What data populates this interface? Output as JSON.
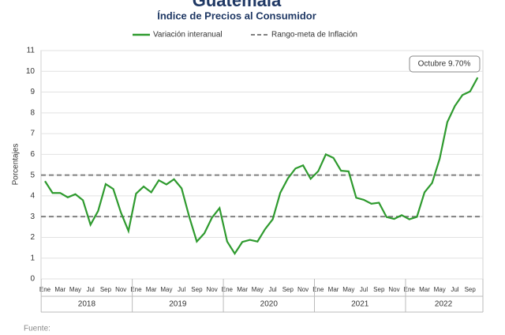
{
  "chart_data": {
    "type": "line",
    "title": "Guatemala",
    "subtitle": "Índice de Precios al Consumidor",
    "y_label": "Porcentajes",
    "categories": [
      "Ene",
      null,
      "Mar",
      null,
      "May",
      null,
      "Jul",
      null,
      "Sep",
      null,
      "Nov",
      null,
      "Ene",
      null,
      "Mar",
      null,
      "May",
      null,
      "Jul",
      null,
      "Sep",
      null,
      "Nov",
      null,
      "Ene",
      null,
      "Mar",
      null,
      "May",
      null,
      "Jul",
      null,
      "Sep",
      null,
      "Nov",
      null,
      "Ene",
      null,
      "Mar",
      null,
      "May",
      null,
      "Jul",
      null,
      "Sep",
      null,
      "Nov",
      null,
      "Ene",
      null,
      "Mar",
      null,
      "May",
      null,
      "Jul",
      null,
      "Sep",
      null
    ],
    "years": [
      "2018",
      "2019",
      "2020",
      "2021",
      "2022"
    ],
    "series": [
      {
        "name": "Variación interanual",
        "color": "#2e9a2e",
        "values": [
          4.71,
          4.14,
          4.14,
          3.93,
          4.08,
          3.79,
          2.61,
          3.27,
          4.57,
          4.33,
          3.2,
          2.31,
          4.11,
          4.45,
          4.17,
          4.75,
          4.55,
          4.8,
          4.36,
          3.0,
          1.8,
          2.2,
          2.95,
          3.41,
          1.8,
          1.22,
          1.78,
          1.88,
          1.8,
          2.4,
          2.87,
          4.15,
          4.84,
          5.32,
          5.47,
          4.82,
          5.19,
          6.0,
          5.83,
          5.21,
          5.18,
          3.91,
          3.81,
          3.62,
          3.67,
          2.98,
          2.89,
          3.07,
          2.87,
          2.99,
          4.17,
          4.62,
          5.79,
          7.55,
          8.33,
          8.86,
          9.03,
          9.7
        ]
      }
    ],
    "reference": {
      "name": "Rango-meta de Inflación",
      "color": "#808080",
      "values": [
        3,
        5
      ]
    },
    "annotation": "Octubre 9.70%",
    "ylim": [
      0,
      11
    ],
    "yticks": [
      0,
      1,
      2,
      3,
      4,
      5,
      6,
      7,
      8,
      9,
      10,
      11
    ],
    "grid": true,
    "footer": "Fuente:"
  }
}
